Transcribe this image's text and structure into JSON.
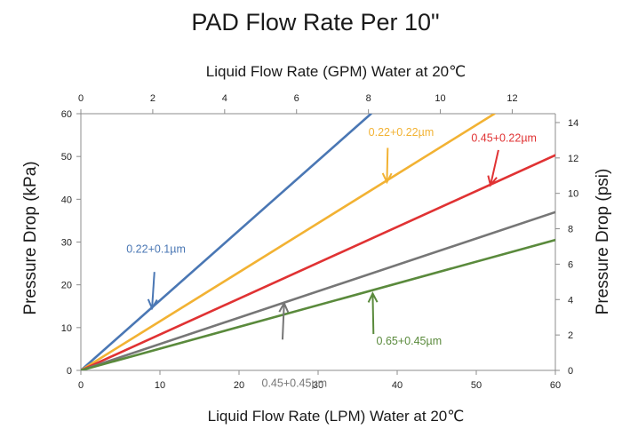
{
  "chart_data": {
    "type": "line",
    "title": "PAD Flow Rate Per 10\"",
    "xlabel": "Liquid Flow Rate (LPM) Water at 20℃",
    "x2label": "Liquid Flow Rate (GPM) Water at 20℃",
    "ylabel": "Pressure Drop (kPa)",
    "y2label": "Pressure Drop (psi)",
    "xlim": [
      0,
      60
    ],
    "ylim": [
      0,
      60
    ],
    "x2lim": [
      0,
      13.2
    ],
    "y2lim": [
      0,
      14.5
    ],
    "x_ticks": [
      0,
      10,
      20,
      30,
      40,
      50,
      60
    ],
    "y_ticks": [
      0,
      10,
      20,
      30,
      40,
      50,
      60
    ],
    "x2_ticks": [
      0,
      2,
      4,
      6,
      8,
      10,
      12
    ],
    "y2_ticks": [
      0,
      2,
      4,
      6,
      8,
      10,
      12,
      14
    ],
    "grid": false,
    "series": [
      {
        "name": "0.22+0.1µm",
        "color": "#4a77b4",
        "x": [
          0,
          36.7
        ],
        "y": [
          0,
          60
        ],
        "label_at": [
          9.5,
          27.5
        ],
        "arrow_from": [
          9.3,
          23
        ],
        "arrow_to": [
          9.0,
          14.5
        ]
      },
      {
        "name": "0.22+0.22µm",
        "color": "#f2b233",
        "x": [
          0,
          52.3
        ],
        "y": [
          0,
          60
        ],
        "label_at": [
          40.5,
          54.8
        ],
        "arrow_from": [
          38.8,
          52
        ],
        "arrow_to": [
          38.7,
          44
        ]
      },
      {
        "name": "0.45+0.22µm",
        "color": "#e03233",
        "x": [
          0,
          60
        ],
        "y": [
          0,
          50.3
        ],
        "label_at": [
          53.5,
          53.5
        ],
        "arrow_from": [
          52.8,
          51.5
        ],
        "arrow_to": [
          51.8,
          43.3
        ]
      },
      {
        "name": "0.45+0.45µm",
        "color": "#767676",
        "x": [
          0,
          60
        ],
        "y": [
          0,
          37
        ],
        "label_at": [
          27,
          -3.8
        ],
        "arrow_from": [
          25.5,
          7.2
        ],
        "arrow_to": [
          25.7,
          15.7
        ]
      },
      {
        "name": "0.65+0.45µm",
        "color": "#5a8a3c",
        "x": [
          0,
          60
        ],
        "y": [
          0,
          30.5
        ],
        "label_at": [
          41.5,
          6
        ],
        "arrow_from": [
          37,
          8.5
        ],
        "arrow_to": [
          36.9,
          18
        ]
      }
    ]
  }
}
